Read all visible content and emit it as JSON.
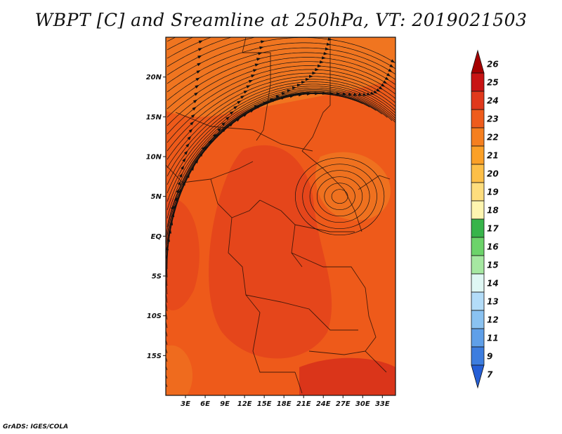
{
  "title": "WBPT [C] and Sreamline at 250hPa, VT: 2019021503",
  "credit": "GrADS: IGES/COLA",
  "map": {
    "lon_ticks": [
      "3E",
      "6E",
      "9E",
      "12E",
      "15E",
      "18E",
      "21E",
      "24E",
      "27E",
      "30E",
      "33E"
    ],
    "lat_ticks": [
      "20N",
      "15N",
      "10N",
      "5N",
      "EQ",
      "5S",
      "10S",
      "15S"
    ],
    "lon_range": [
      0,
      35
    ],
    "lat_range": [
      -20,
      25
    ],
    "circulation_center": {
      "lon": 26.5,
      "lat": 5.0
    },
    "field_colors": {
      "dominant": "#ee5a1a",
      "warmer": "#e2401c",
      "cooler": "#f07a22",
      "warmest": "#d42c1a"
    }
  },
  "colorbar": {
    "labels": [
      "26",
      "25",
      "24",
      "23",
      "22",
      "21",
      "20",
      "19",
      "18",
      "17",
      "16",
      "15",
      "14",
      "13",
      "12",
      "11",
      "9",
      "7"
    ],
    "colors": [
      "#a50000",
      "#c81414",
      "#e0391c",
      "#ee5c1c",
      "#f57f1f",
      "#fba027",
      "#fdbf48",
      "#fedd7d",
      "#fef5b0",
      "#37b44a",
      "#6cd36a",
      "#a6e8a2",
      "#dff7f4",
      "#b3dcf8",
      "#8ac2f1",
      "#5f9fe8",
      "#3d7ddf",
      "#245ed6"
    ]
  }
}
